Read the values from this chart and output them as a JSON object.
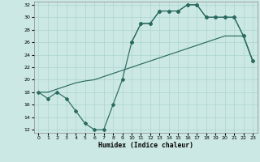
{
  "xlabel": "Humidex (Indice chaleur)",
  "bg_color": "#cce8e4",
  "line_color": "#2a6b60",
  "grid_color": "#aad4ce",
  "xlim": [
    -0.5,
    23.5
  ],
  "ylim": [
    11.5,
    32.5
  ],
  "xticks": [
    0,
    1,
    2,
    3,
    4,
    5,
    6,
    7,
    8,
    9,
    10,
    11,
    12,
    13,
    14,
    15,
    16,
    17,
    18,
    19,
    20,
    21,
    22,
    23
  ],
  "yticks": [
    12,
    14,
    16,
    18,
    20,
    22,
    24,
    26,
    28,
    30,
    32
  ],
  "line1_x": [
    0,
    1,
    2,
    3,
    4,
    5,
    6,
    7,
    8,
    9,
    10,
    11,
    12,
    13,
    14,
    15,
    16,
    17,
    18,
    19,
    20,
    21,
    22,
    23
  ],
  "line1_y": [
    18,
    17,
    18,
    17,
    15,
    13,
    12,
    12,
    16,
    20,
    26,
    29,
    29,
    31,
    31,
    31,
    32,
    32,
    30,
    30,
    30,
    30,
    27,
    23
  ],
  "line2_x": [
    0,
    1,
    2,
    3,
    4,
    5,
    6,
    7,
    8,
    9,
    10,
    11,
    12,
    13,
    14,
    15,
    16,
    17,
    18,
    19,
    20,
    21,
    22,
    23
  ],
  "line2_y": [
    18,
    18,
    18.5,
    19,
    19.5,
    19.8,
    20,
    20.5,
    21,
    21.5,
    22,
    22.5,
    23,
    23.5,
    24,
    24.5,
    25,
    25.5,
    26,
    26.5,
    27,
    27,
    27,
    23
  ],
  "line3_x": [
    10,
    11,
    12,
    13,
    14,
    15,
    16,
    17,
    18,
    19,
    20,
    21,
    22,
    23
  ],
  "line3_y": [
    26,
    29,
    29,
    31,
    31,
    31,
    32,
    32,
    30,
    30,
    30,
    30,
    27,
    23
  ]
}
